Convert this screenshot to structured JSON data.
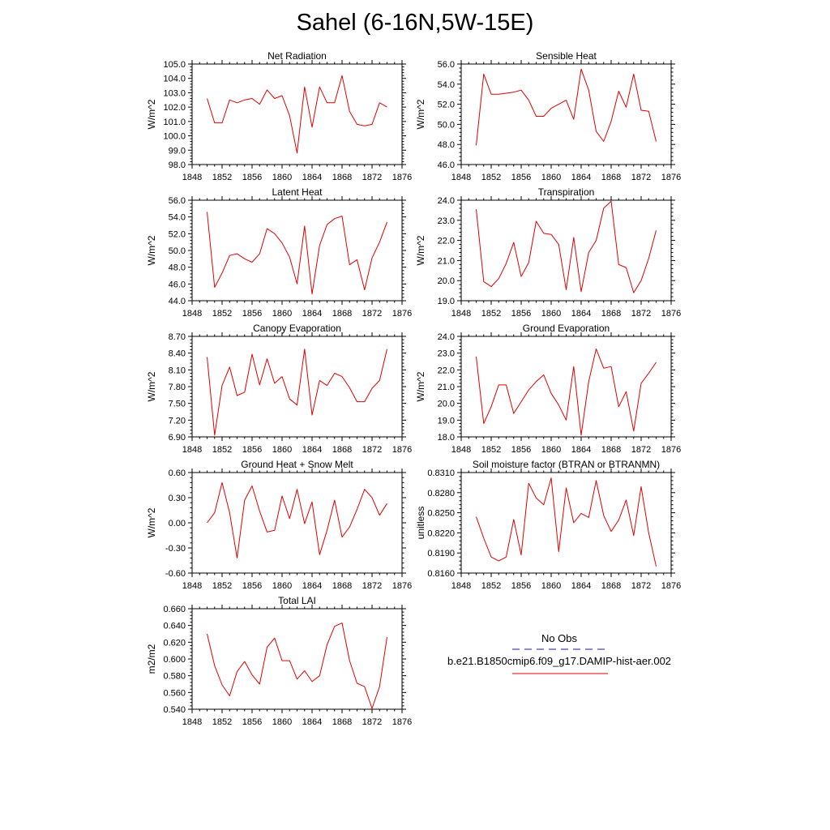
{
  "page": {
    "title": "Sahel (6-16N,5W-15E)"
  },
  "legend": {
    "entries": [
      {
        "label": "No Obs",
        "color": "#1a1aa6",
        "style": "dashed"
      },
      {
        "label": "b.e21.B1850cmip6.f09_g17.DAMIP-hist-aer.002",
        "color": "#e00000",
        "style": "solid"
      }
    ]
  },
  "chart_data": [
    {
      "type": "line",
      "title": "Net Radiation",
      "ylabel": "W/m^2",
      "xlim": [
        1848,
        1876
      ],
      "ylim": [
        98.0,
        105.0
      ],
      "xticks": [
        "1848",
        "1852",
        "1856",
        "1860",
        "1864",
        "1868",
        "1872",
        "1876"
      ],
      "yticks": [
        "98.0",
        "99.0",
        "100.0",
        "101.0",
        "102.0",
        "103.0",
        "104.0",
        "105.0"
      ],
      "series": [
        {
          "color": "#e00000",
          "x": [
            1850,
            1851,
            1852,
            1853,
            1854,
            1855,
            1856,
            1857,
            1858,
            1859,
            1860,
            1861,
            1862,
            1863,
            1864,
            1865,
            1866,
            1867,
            1868,
            1869,
            1870,
            1871,
            1872,
            1873,
            1874
          ],
          "y": [
            102.6,
            100.9,
            100.9,
            102.5,
            102.3,
            102.5,
            102.6,
            102.2,
            103.2,
            102.6,
            102.8,
            101.4,
            98.8,
            103.4,
            100.6,
            103.4,
            102.3,
            102.3,
            104.2,
            101.7,
            100.8,
            100.7,
            100.8,
            102.3,
            102.0
          ]
        }
      ]
    },
    {
      "type": "line",
      "title": "Sensible Heat",
      "ylabel": "W/m^2",
      "xlim": [
        1848,
        1876
      ],
      "ylim": [
        46.0,
        56.0
      ],
      "xticks": [
        "1848",
        "1852",
        "1856",
        "1860",
        "1864",
        "1868",
        "1872",
        "1876"
      ],
      "yticks": [
        "46.0",
        "48.0",
        "50.0",
        "52.0",
        "54.0",
        "56.0"
      ],
      "series": [
        {
          "color": "#e00000",
          "x": [
            1850,
            1851,
            1852,
            1853,
            1854,
            1855,
            1856,
            1857,
            1858,
            1859,
            1860,
            1861,
            1862,
            1863,
            1864,
            1865,
            1866,
            1867,
            1868,
            1869,
            1870,
            1871,
            1872,
            1873,
            1874
          ],
          "y": [
            47.9,
            55.0,
            53.0,
            53.0,
            53.1,
            53.2,
            53.4,
            52.4,
            50.8,
            50.8,
            51.6,
            52.0,
            52.4,
            50.5,
            55.5,
            53.4,
            49.3,
            48.3,
            50.3,
            53.3,
            51.7,
            55.0,
            51.4,
            51.3,
            48.3
          ]
        }
      ]
    },
    {
      "type": "line",
      "title": "Latent Heat",
      "ylabel": "W/m^2",
      "xlim": [
        1848,
        1876
      ],
      "ylim": [
        44.0,
        56.0
      ],
      "xticks": [
        "1848",
        "1852",
        "1856",
        "1860",
        "1864",
        "1868",
        "1872",
        "1876"
      ],
      "yticks": [
        "44.0",
        "46.0",
        "48.0",
        "50.0",
        "52.0",
        "54.0",
        "56.0"
      ],
      "series": [
        {
          "color": "#e00000",
          "x": [
            1850,
            1851,
            1852,
            1853,
            1854,
            1855,
            1856,
            1857,
            1858,
            1859,
            1860,
            1861,
            1862,
            1863,
            1864,
            1865,
            1866,
            1867,
            1868,
            1869,
            1870,
            1871,
            1872,
            1873,
            1874
          ],
          "y": [
            54.6,
            45.6,
            47.3,
            49.4,
            49.6,
            49.0,
            48.6,
            49.6,
            52.6,
            52.0,
            50.9,
            49.2,
            46.0,
            52.9,
            44.8,
            50.6,
            53.1,
            53.8,
            54.1,
            48.3,
            48.9,
            45.3,
            49.1,
            51.0,
            53.4
          ]
        }
      ]
    },
    {
      "type": "line",
      "title": "Transpiration",
      "ylabel": "W/m^2",
      "xlim": [
        1848,
        1876
      ],
      "ylim": [
        19.0,
        24.0
      ],
      "xticks": [
        "1848",
        "1852",
        "1856",
        "1860",
        "1864",
        "1868",
        "1872",
        "1876"
      ],
      "yticks": [
        "19.0",
        "20.0",
        "21.0",
        "22.0",
        "23.0",
        "24.0"
      ],
      "series": [
        {
          "color": "#e00000",
          "x": [
            1850,
            1851,
            1852,
            1853,
            1854,
            1855,
            1856,
            1857,
            1858,
            1859,
            1860,
            1861,
            1862,
            1863,
            1864,
            1865,
            1866,
            1867,
            1868,
            1869,
            1870,
            1871,
            1872,
            1873,
            1874
          ],
          "y": [
            23.55,
            19.95,
            19.7,
            20.1,
            20.85,
            21.9,
            20.2,
            20.9,
            22.95,
            22.35,
            22.3,
            21.8,
            19.55,
            22.15,
            19.45,
            21.4,
            22.0,
            23.6,
            23.95,
            20.8,
            20.65,
            19.4,
            20.0,
            21.1,
            22.5
          ]
        }
      ]
    },
    {
      "type": "line",
      "title": "Canopy Evaporation",
      "ylabel": "W/m^2",
      "xlim": [
        1848,
        1876
      ],
      "ylim": [
        6.9,
        8.7
      ],
      "xticks": [
        "1848",
        "1852",
        "1856",
        "1860",
        "1864",
        "1868",
        "1872",
        "1876"
      ],
      "yticks": [
        "6.90",
        "7.20",
        "7.50",
        "7.80",
        "8.10",
        "8.40",
        "8.70"
      ],
      "series": [
        {
          "color": "#e00000",
          "x": [
            1850,
            1851,
            1852,
            1853,
            1854,
            1855,
            1856,
            1857,
            1858,
            1859,
            1860,
            1861,
            1862,
            1863,
            1864,
            1865,
            1866,
            1867,
            1868,
            1869,
            1870,
            1871,
            1872,
            1873,
            1874
          ],
          "y": [
            8.33,
            6.93,
            7.82,
            8.15,
            7.64,
            7.7,
            8.38,
            7.83,
            8.3,
            7.86,
            7.98,
            7.58,
            7.47,
            8.47,
            7.29,
            7.91,
            7.82,
            8.04,
            7.98,
            7.78,
            7.53,
            7.53,
            7.77,
            7.91,
            8.47
          ]
        }
      ]
    },
    {
      "type": "line",
      "title": "Ground Evaporation",
      "ylabel": "W/m^2",
      "xlim": [
        1848,
        1876
      ],
      "ylim": [
        18.0,
        24.0
      ],
      "xticks": [
        "1848",
        "1852",
        "1856",
        "1860",
        "1864",
        "1868",
        "1872",
        "1876"
      ],
      "yticks": [
        "18.0",
        "19.0",
        "20.0",
        "21.0",
        "22.0",
        "23.0",
        "24.0"
      ],
      "series": [
        {
          "color": "#e00000",
          "x": [
            1850,
            1851,
            1852,
            1853,
            1854,
            1855,
            1856,
            1857,
            1858,
            1859,
            1860,
            1861,
            1862,
            1863,
            1864,
            1865,
            1866,
            1867,
            1868,
            1869,
            1870,
            1871,
            1872,
            1873,
            1874
          ],
          "y": [
            22.8,
            18.8,
            19.8,
            21.1,
            21.1,
            19.4,
            20.1,
            20.8,
            21.3,
            21.7,
            20.6,
            19.9,
            19.0,
            22.2,
            18.1,
            21.3,
            23.25,
            22.1,
            22.2,
            19.8,
            20.7,
            18.35,
            21.2,
            21.8,
            22.45
          ]
        }
      ]
    },
    {
      "type": "line",
      "title": "Ground Heat + Snow Melt",
      "ylabel": "W/m^2",
      "xlim": [
        1848,
        1876
      ],
      "ylim": [
        -0.6,
        0.6
      ],
      "xticks": [
        "1848",
        "1852",
        "1856",
        "1860",
        "1864",
        "1868",
        "1872",
        "1876"
      ],
      "yticks": [
        "-0.60",
        "-0.30",
        "0.00",
        "0.30",
        "0.60"
      ],
      "series": [
        {
          "color": "#e00000",
          "x": [
            1850,
            1851,
            1852,
            1853,
            1854,
            1855,
            1856,
            1857,
            1858,
            1859,
            1860,
            1861,
            1862,
            1863,
            1864,
            1865,
            1866,
            1867,
            1868,
            1869,
            1870,
            1871,
            1872,
            1873,
            1874
          ],
          "y": [
            0.0,
            0.12,
            0.48,
            0.12,
            -0.42,
            0.27,
            0.44,
            0.14,
            -0.11,
            -0.09,
            0.32,
            0.05,
            0.4,
            -0.01,
            0.25,
            -0.38,
            -0.09,
            0.27,
            -0.17,
            -0.05,
            0.16,
            0.4,
            0.3,
            0.09,
            0.23
          ]
        }
      ]
    },
    {
      "type": "line",
      "title": "Soil moisture factor (BTRAN or BTRANMN)",
      "ylabel": "unitless",
      "xlim": [
        1848,
        1876
      ],
      "ylim": [
        0.816,
        0.831
      ],
      "xticks": [
        "1848",
        "1852",
        "1856",
        "1860",
        "1864",
        "1868",
        "1872",
        "1876"
      ],
      "yticks": [
        "0.8160",
        "0.8190",
        "0.8220",
        "0.8250",
        "0.8280",
        "0.8310"
      ],
      "series": [
        {
          "color": "#e00000",
          "x": [
            1850,
            1851,
            1852,
            1853,
            1854,
            1855,
            1856,
            1857,
            1858,
            1859,
            1860,
            1861,
            1862,
            1863,
            1864,
            1865,
            1866,
            1867,
            1868,
            1869,
            1870,
            1871,
            1872,
            1873,
            1874
          ],
          "y": [
            0.8244,
            0.8212,
            0.8184,
            0.8178,
            0.8184,
            0.824,
            0.8187,
            0.8294,
            0.8272,
            0.8262,
            0.8302,
            0.8192,
            0.8287,
            0.8235,
            0.8249,
            0.8243,
            0.8298,
            0.8246,
            0.8222,
            0.8239,
            0.8269,
            0.8216,
            0.8289,
            0.822,
            0.817
          ]
        }
      ]
    },
    {
      "type": "line",
      "title": "Total LAI",
      "ylabel": "m2/m2",
      "xlim": [
        1848,
        1876
      ],
      "ylim": [
        0.54,
        0.66
      ],
      "xticks": [
        "1848",
        "1852",
        "1856",
        "1860",
        "1864",
        "1868",
        "1872",
        "1876"
      ],
      "yticks": [
        "0.540",
        "0.560",
        "0.580",
        "0.600",
        "0.620",
        "0.640",
        "0.660"
      ],
      "series": [
        {
          "color": "#e00000",
          "x": [
            1850,
            1851,
            1852,
            1853,
            1854,
            1855,
            1856,
            1857,
            1858,
            1859,
            1860,
            1861,
            1862,
            1863,
            1864,
            1865,
            1866,
            1867,
            1868,
            1869,
            1870,
            1871,
            1872,
            1873,
            1874
          ],
          "y": [
            0.63,
            0.592,
            0.569,
            0.556,
            0.585,
            0.597,
            0.581,
            0.57,
            0.614,
            0.625,
            0.598,
            0.598,
            0.576,
            0.586,
            0.573,
            0.58,
            0.617,
            0.639,
            0.643,
            0.598,
            0.571,
            0.567,
            0.541,
            0.567,
            0.626
          ]
        }
      ]
    }
  ]
}
